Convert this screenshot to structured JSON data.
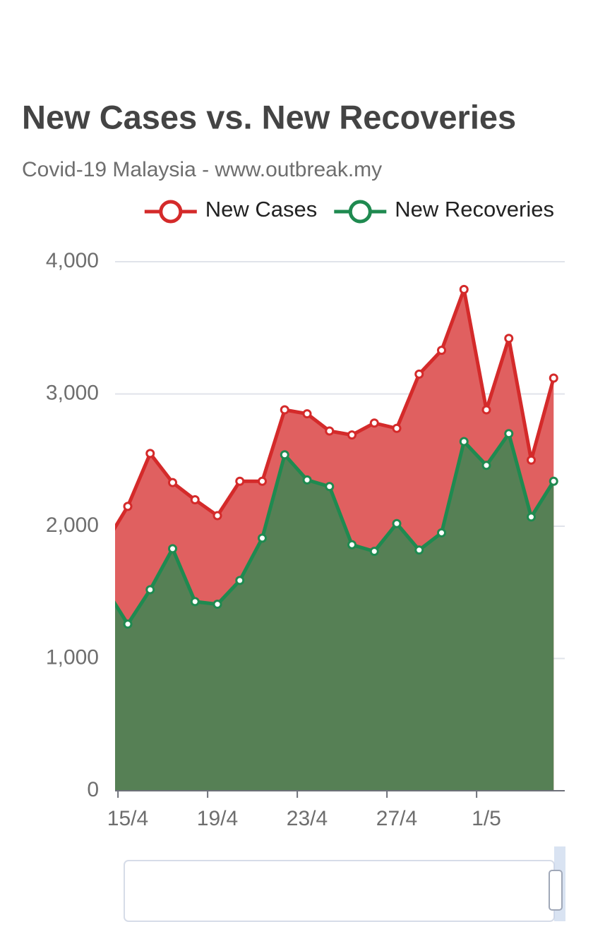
{
  "chart_data": {
    "type": "area",
    "title": "New Cases vs. New Recoveries",
    "subtitle": "Covid-19 Malaysia - www.outbreak.my",
    "categories": [
      null,
      "15/4",
      null,
      null,
      null,
      "19/4",
      null,
      null,
      null,
      "23/4",
      null,
      null,
      null,
      "27/4",
      null,
      null,
      null,
      "1/5",
      null,
      null,
      null
    ],
    "series": [
      {
        "name": "New Cases",
        "color": "#d42a2a",
        "fill": "#e06060",
        "values": [
          1870,
          2150,
          2550,
          2330,
          2200,
          2080,
          2340,
          2340,
          2880,
          2850,
          2720,
          2690,
          2780,
          2740,
          3150,
          3330,
          3790,
          2880,
          3420,
          2500,
          3120
        ]
      },
      {
        "name": "New Recoveries",
        "color": "#1f8a50",
        "fill": "#568055",
        "values": [
          1530,
          1260,
          1520,
          1830,
          1430,
          1410,
          1590,
          1910,
          2540,
          2350,
          2300,
          1860,
          1810,
          2020,
          1820,
          1950,
          2640,
          2460,
          2700,
          2070,
          2340
        ]
      }
    ],
    "ylim": [
      0,
      4000
    ],
    "yticks": [
      0,
      {
        "value": 1000,
        "label": "1,000"
      },
      {
        "value": 2000,
        "label": "2,000"
      },
      {
        "value": 3000,
        "label": "3,000"
      },
      {
        "value": 4000,
        "label": "4,000"
      }
    ],
    "grid": true,
    "legend_position": "top-right"
  }
}
